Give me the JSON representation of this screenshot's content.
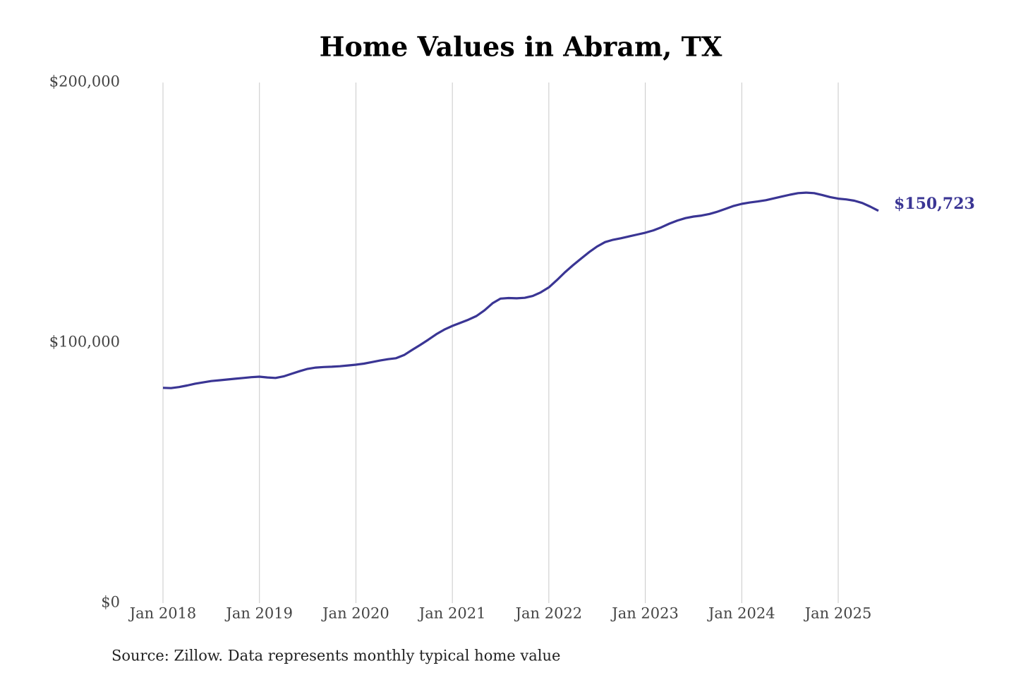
{
  "chart_data": {
    "type": "line",
    "title": "Home Values in Abram, TX",
    "source": "Source: Zillow. Data represents monthly typical home value",
    "x": [
      "2018-01",
      "2018-02",
      "2018-03",
      "2018-04",
      "2018-05",
      "2018-06",
      "2018-07",
      "2018-08",
      "2018-09",
      "2018-10",
      "2018-11",
      "2018-12",
      "2019-01",
      "2019-02",
      "2019-03",
      "2019-04",
      "2019-05",
      "2019-06",
      "2019-07",
      "2019-08",
      "2019-09",
      "2019-10",
      "2019-11",
      "2019-12",
      "2020-01",
      "2020-02",
      "2020-03",
      "2020-04",
      "2020-05",
      "2020-06",
      "2020-07",
      "2020-08",
      "2020-09",
      "2020-10",
      "2020-11",
      "2020-12",
      "2021-01",
      "2021-02",
      "2021-03",
      "2021-04",
      "2021-05",
      "2021-06",
      "2021-07",
      "2021-08",
      "2021-09",
      "2021-10",
      "2021-11",
      "2021-12",
      "2022-01",
      "2022-02",
      "2022-03",
      "2022-04",
      "2022-05",
      "2022-06",
      "2022-07",
      "2022-08",
      "2022-09",
      "2022-10",
      "2022-11",
      "2022-12",
      "2023-01",
      "2023-02",
      "2023-03",
      "2023-04",
      "2023-05",
      "2023-06",
      "2023-07",
      "2023-08",
      "2023-09",
      "2023-10",
      "2023-11",
      "2023-12",
      "2024-01",
      "2024-02",
      "2024-03",
      "2024-04",
      "2024-05",
      "2024-06",
      "2024-07",
      "2024-08",
      "2024-09",
      "2024-10",
      "2024-11",
      "2024-12",
      "2025-01",
      "2025-02",
      "2025-03",
      "2025-04",
      "2025-05",
      "2025-06"
    ],
    "series": [
      {
        "color": "#3a3594",
        "values": [
          82700,
          82600,
          83000,
          83600,
          84300,
          84800,
          85300,
          85600,
          85900,
          86200,
          86500,
          86800,
          87000,
          86700,
          86500,
          87100,
          88100,
          89100,
          90000,
          90500,
          90700,
          90800,
          91000,
          91300,
          91600,
          92000,
          92600,
          93200,
          93700,
          94100,
          95300,
          97300,
          99200,
          101200,
          103300,
          105100,
          106500,
          107700,
          108900,
          110300,
          112500,
          115200,
          117000,
          117200,
          117100,
          117300,
          118000,
          119400,
          121300,
          124100,
          127100,
          129800,
          132300,
          134800,
          137000,
          138700,
          139600,
          140200,
          140900,
          141600,
          142300,
          143200,
          144400,
          145800,
          147000,
          147900,
          148500,
          148900,
          149500,
          150400,
          151500,
          152600,
          153400,
          153900,
          154300,
          154800,
          155500,
          156200,
          156900,
          157500,
          157700,
          157500,
          156800,
          156000,
          155400,
          155100,
          154600,
          153700,
          152300,
          150723
        ],
        "value_labels": [
          null,
          null,
          null,
          null,
          null,
          null,
          null,
          null,
          null,
          null,
          null,
          null,
          null,
          null,
          null,
          null,
          null,
          null,
          null,
          null,
          null,
          null,
          null,
          null,
          null,
          null,
          null,
          null,
          null,
          null,
          null,
          null,
          null,
          null,
          null,
          null,
          null,
          null,
          null,
          null,
          null,
          null,
          null,
          null,
          null,
          null,
          null,
          null,
          null,
          null,
          null,
          null,
          null,
          null,
          null,
          null,
          null,
          null,
          null,
          null,
          null,
          null,
          null,
          null,
          null,
          null,
          null,
          null,
          null,
          null,
          null,
          null,
          null,
          null,
          null,
          null,
          null,
          null,
          null,
          null,
          null,
          null,
          null,
          null,
          null,
          null,
          null,
          null,
          null,
          "$150,723"
        ]
      }
    ],
    "xlim": [
      "2018-01",
      "2025-06"
    ],
    "xticks": [
      {
        "value": "2018-01",
        "label": "Jan 2018"
      },
      {
        "value": "2019-01",
        "label": "Jan 2019"
      },
      {
        "value": "2020-01",
        "label": "Jan 2020"
      },
      {
        "value": "2021-01",
        "label": "Jan 2021"
      },
      {
        "value": "2022-01",
        "label": "Jan 2022"
      },
      {
        "value": "2023-01",
        "label": "Jan 2023"
      },
      {
        "value": "2024-01",
        "label": "Jan 2024"
      },
      {
        "value": "2025-01",
        "label": "Jan 2025"
      }
    ],
    "ylim": [
      0,
      200000
    ],
    "yticks": [
      {
        "value": 0,
        "label": "$0"
      },
      {
        "value": 100000,
        "label": "$100,000"
      },
      {
        "value": 200000,
        "label": "$200,000"
      }
    ],
    "grid": "x"
  }
}
